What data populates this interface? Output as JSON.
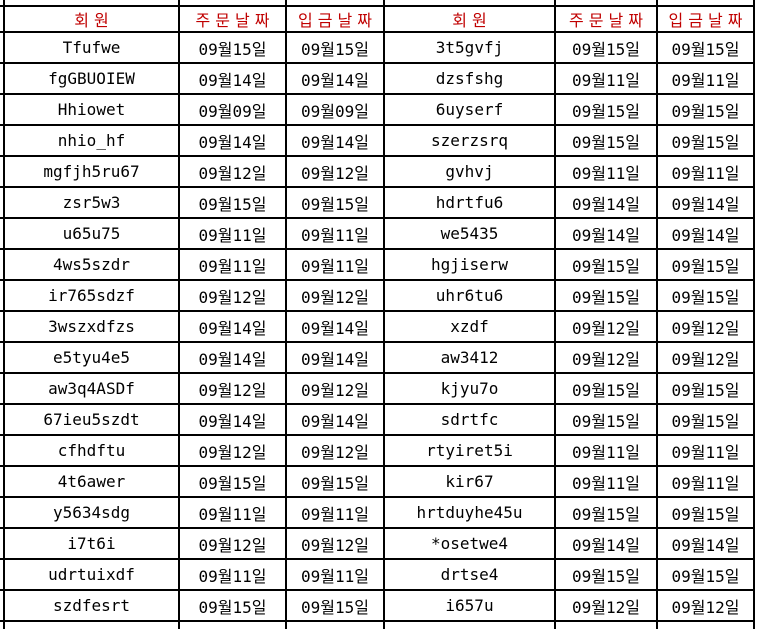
{
  "table": {
    "headers": [
      "회원",
      "주문날짜",
      "입금날짜",
      "회원",
      "주문날짜",
      "입금날짜"
    ],
    "rows": [
      [
        "Tfufwe",
        "09월15일",
        "09월15일",
        "3t5gvfj",
        "09월15일",
        "09월15일"
      ],
      [
        "fgGBUOIEW",
        "09월14일",
        "09월14일",
        "dzsfshg",
        "09월11일",
        "09월11일"
      ],
      [
        "Hhiowet",
        "09월09일",
        "09월09일",
        "6uyserf",
        "09월15일",
        "09월15일"
      ],
      [
        "nhio_hf",
        "09월14일",
        "09월14일",
        "szerzsrq",
        "09월15일",
        "09월15일"
      ],
      [
        "mgfjh5ru67",
        "09월12일",
        "09월12일",
        "gvhvj",
        "09월11일",
        "09월11일"
      ],
      [
        "zsr5w3",
        "09월15일",
        "09월15일",
        "hdrtfu6",
        "09월14일",
        "09월14일"
      ],
      [
        "u65u75",
        "09월11일",
        "09월11일",
        "we5435",
        "09월14일",
        "09월14일"
      ],
      [
        "4ws5szdr",
        "09월11일",
        "09월11일",
        "hgjiserw",
        "09월15일",
        "09월15일"
      ],
      [
        "ir765sdzf",
        "09월12일",
        "09월12일",
        "uhr6tu6",
        "09월15일",
        "09월15일"
      ],
      [
        "3wszxdfzs",
        "09월14일",
        "09월14일",
        "xzdf",
        "09월12일",
        "09월12일"
      ],
      [
        "e5tyu4e5",
        "09월14일",
        "09월14일",
        "aw3412",
        "09월12일",
        "09월12일"
      ],
      [
        "aw3q4ASDf",
        "09월12일",
        "09월12일",
        "kjyu7o",
        "09월15일",
        "09월15일"
      ],
      [
        "67ieu5szdt",
        "09월14일",
        "09월14일",
        "sdrtfc",
        "09월15일",
        "09월15일"
      ],
      [
        "cfhdftu",
        "09월12일",
        "09월12일",
        "rtyiret5i",
        "09월11일",
        "09월11일"
      ],
      [
        "4t6awer",
        "09월15일",
        "09월15일",
        "kir67",
        "09월11일",
        "09월11일"
      ],
      [
        "y5634sdg",
        "09월11일",
        "09월11일",
        "hrtduyhe45u",
        "09월15일",
        "09월15일"
      ],
      [
        "i7t6i",
        "09월12일",
        "09월12일",
        "*osetwe4",
        "09월14일",
        "09월14일"
      ],
      [
        "udrtuixdf",
        "09월11일",
        "09월11일",
        "drtse4",
        "09월15일",
        "09월15일"
      ],
      [
        "szdfesrt",
        "09월15일",
        "09월15일",
        "i657u",
        "09월12일",
        "09월12일"
      ]
    ],
    "cell_names": [
      "member-cell",
      "order-date-cell",
      "deposit-date-cell"
    ]
  },
  "colors": {
    "header_text": "#C00000",
    "body_text": "#000000",
    "grid_line": "#000000",
    "cell_background": "#FFFFFF"
  }
}
